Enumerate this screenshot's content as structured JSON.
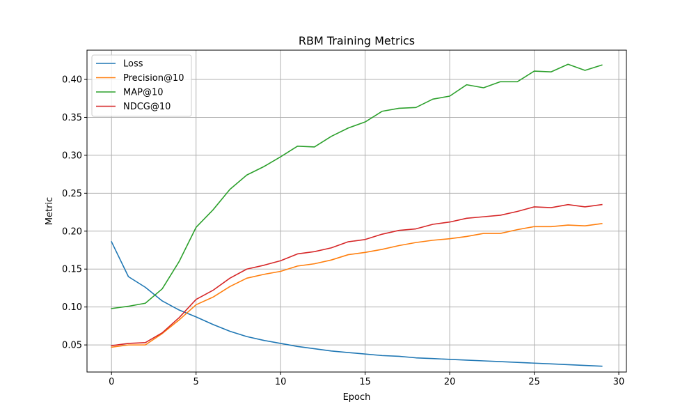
{
  "chart_data": {
    "type": "line",
    "title": "RBM Training Metrics",
    "xlabel": "Epoch",
    "ylabel": "Metric",
    "xlim": [
      -1.45,
      30.45
    ],
    "ylim": [
      0.0143,
      0.4386
    ],
    "xticks": [
      0,
      5,
      10,
      15,
      20,
      25,
      30
    ],
    "yticks": [
      0.05,
      0.1,
      0.15,
      0.2,
      0.25,
      0.3,
      0.35,
      0.4
    ],
    "ytick_labels": [
      "0.05",
      "0.10",
      "0.15",
      "0.20",
      "0.25",
      "0.30",
      "0.35",
      "0.40"
    ],
    "grid": true,
    "legend_position": "top-left",
    "x": [
      0,
      1,
      2,
      3,
      4,
      5,
      6,
      7,
      8,
      9,
      10,
      11,
      12,
      13,
      14,
      15,
      16,
      17,
      18,
      19,
      20,
      21,
      22,
      23,
      24,
      25,
      26,
      27,
      28,
      29
    ],
    "series": [
      {
        "name": "Loss",
        "color": "#1f77b4",
        "values": [
          0.186,
          0.14,
          0.126,
          0.108,
          0.096,
          0.087,
          0.077,
          0.068,
          0.061,
          0.056,
          0.052,
          0.048,
          0.045,
          0.042,
          0.04,
          0.038,
          0.036,
          0.035,
          0.033,
          0.032,
          0.031,
          0.03,
          0.029,
          0.028,
          0.027,
          0.026,
          0.025,
          0.024,
          0.023,
          0.022
        ]
      },
      {
        "name": "Precision@10",
        "color": "#ff7f0e",
        "values": [
          0.047,
          0.05,
          0.05,
          0.065,
          0.083,
          0.103,
          0.113,
          0.127,
          0.138,
          0.143,
          0.147,
          0.154,
          0.157,
          0.162,
          0.169,
          0.172,
          0.176,
          0.181,
          0.185,
          0.188,
          0.19,
          0.193,
          0.197,
          0.197,
          0.202,
          0.206,
          0.206,
          0.208,
          0.207,
          0.21
        ]
      },
      {
        "name": "MAP@10",
        "color": "#2ca02c",
        "values": [
          0.098,
          0.101,
          0.105,
          0.124,
          0.16,
          0.205,
          0.228,
          0.255,
          0.274,
          0.285,
          0.298,
          0.312,
          0.311,
          0.325,
          0.336,
          0.344,
          0.358,
          0.362,
          0.363,
          0.374,
          0.378,
          0.393,
          0.389,
          0.397,
          0.397,
          0.411,
          0.41,
          0.42,
          0.412,
          0.419
        ]
      },
      {
        "name": "NDCG@10",
        "color": "#d62728",
        "values": [
          0.049,
          0.052,
          0.053,
          0.066,
          0.086,
          0.11,
          0.122,
          0.138,
          0.15,
          0.155,
          0.161,
          0.17,
          0.173,
          0.178,
          0.186,
          0.189,
          0.196,
          0.201,
          0.203,
          0.209,
          0.212,
          0.217,
          0.219,
          0.221,
          0.226,
          0.232,
          0.231,
          0.235,
          0.232,
          0.235
        ]
      }
    ]
  }
}
